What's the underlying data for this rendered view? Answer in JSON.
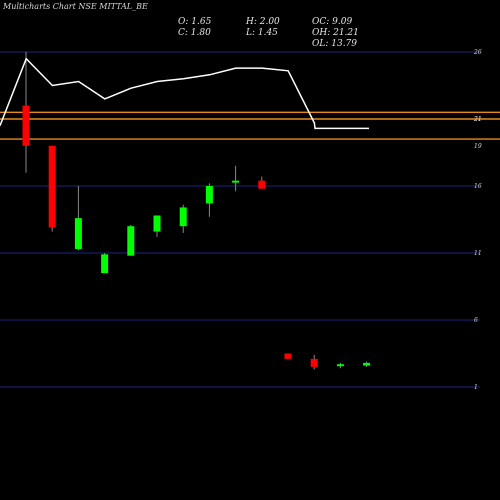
{
  "header": {
    "title": "Multicharts Chart NSE MITTAL_BE",
    "stats": {
      "o": "O: 1.65",
      "h": "H: 2.00",
      "c": "C: 1.80",
      "l": "L: 1.45",
      "oc": "OC: 9.09",
      "oh": "OH: 21.21",
      "ol": "OL: 13.79"
    }
  },
  "colors": {
    "background": "#000000",
    "grid": "#1a237e",
    "up": "#00ff00",
    "down": "#ff0000",
    "line": "#ffffff",
    "level": "#e8891e"
  },
  "chart_data": {
    "type": "candlestick",
    "y_ticks": [
      "26",
      "21",
      "16",
      "11",
      "6",
      "1"
    ],
    "right_labels": [
      "19",
      "21"
    ],
    "ylim": [
      -1,
      30
    ],
    "candles": [
      {
        "open": 22.0,
        "high": 26.0,
        "low": 17.0,
        "close": 19.0,
        "dir": "down"
      },
      {
        "open": 19.0,
        "high": 19.0,
        "low": 12.6,
        "close": 12.9,
        "dir": "down"
      },
      {
        "open": 11.3,
        "high": 16.0,
        "low": 11.2,
        "close": 13.6,
        "dir": "up"
      },
      {
        "open": 9.5,
        "high": 11.0,
        "low": 9.5,
        "close": 10.9,
        "dir": "up"
      },
      {
        "open": 10.8,
        "high": 13.1,
        "low": 10.8,
        "close": 13.0,
        "dir": "up"
      },
      {
        "open": 12.6,
        "high": 13.7,
        "low": 12.2,
        "close": 13.8,
        "dir": "up"
      },
      {
        "open": 13.0,
        "high": 14.6,
        "low": 12.5,
        "close": 14.4,
        "dir": "up"
      },
      {
        "open": 14.7,
        "high": 16.2,
        "low": 13.7,
        "close": 16.0,
        "dir": "up"
      },
      {
        "open": 16.3,
        "high": 17.5,
        "low": 15.6,
        "close": 16.4,
        "dir": "up"
      },
      {
        "open": 16.4,
        "high": 16.7,
        "low": 15.8,
        "close": 15.8,
        "dir": "down"
      },
      {
        "open": 3.5,
        "high": 3.5,
        "low": 3.1,
        "close": 3.1,
        "dir": "down"
      },
      {
        "open": 3.1,
        "high": 3.4,
        "low": 2.3,
        "close": 2.5,
        "dir": "down"
      },
      {
        "open": 2.6,
        "high": 2.8,
        "low": 2.4,
        "close": 2.7,
        "dir": "up"
      },
      {
        "open": 2.6,
        "high": 2.9,
        "low": 2.5,
        "close": 2.8,
        "dir": "up"
      }
    ],
    "line_series": [
      20.5,
      25.5,
      23.5,
      23.8,
      22.5,
      23.3,
      23.8,
      24.0,
      24.3,
      24.8,
      24.8,
      24.6,
      20.7,
      20.3,
      20.3,
      20.3
    ],
    "levels": [
      21.5,
      21.0,
      19.5
    ]
  }
}
